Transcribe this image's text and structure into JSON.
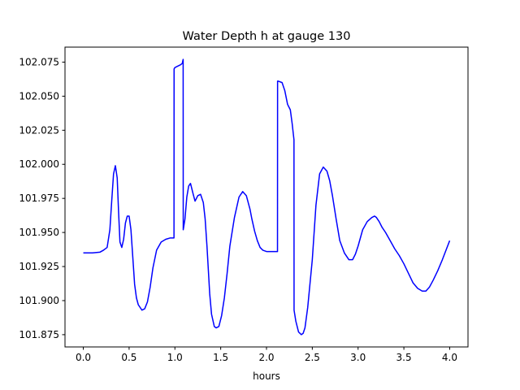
{
  "chart_data": {
    "type": "line",
    "title": "Water Depth h at gauge 130",
    "xlabel": "hours",
    "ylabel": "",
    "xlim": [
      -0.2,
      4.2
    ],
    "ylim": [
      101.866,
      102.086
    ],
    "xticks": [
      0.0,
      0.5,
      1.0,
      1.5,
      2.0,
      2.5,
      3.0,
      3.5,
      4.0
    ],
    "xtick_labels": [
      "0.0",
      "0.5",
      "1.0",
      "1.5",
      "2.0",
      "2.5",
      "3.0",
      "3.5",
      "4.0"
    ],
    "yticks": [
      101.875,
      101.9,
      101.925,
      101.95,
      101.975,
      102.0,
      102.025,
      102.05,
      102.075
    ],
    "ytick_labels": [
      "101.875",
      "101.900",
      "101.925",
      "101.950",
      "101.975",
      "102.000",
      "102.025",
      "102.050",
      "102.075"
    ],
    "grid": false,
    "color": "#0000ff",
    "series": [
      {
        "x": [
          0.0,
          0.1,
          0.18,
          0.22,
          0.26,
          0.29,
          0.31,
          0.33,
          0.35,
          0.37,
          0.385,
          0.4,
          0.42,
          0.44,
          0.46,
          0.48,
          0.5,
          0.52,
          0.54,
          0.56,
          0.58,
          0.6,
          0.62,
          0.64,
          0.67,
          0.7,
          0.73,
          0.76,
          0.8,
          0.85,
          0.9,
          0.95,
          0.99,
          0.991,
          1.0,
          1.03,
          1.06,
          1.08,
          1.09,
          1.091,
          1.11,
          1.13,
          1.15,
          1.17,
          1.2,
          1.22,
          1.25,
          1.28,
          1.31,
          1.33,
          1.35,
          1.38,
          1.4,
          1.43,
          1.45,
          1.48,
          1.51,
          1.54,
          1.57,
          1.6,
          1.65,
          1.7,
          1.74,
          1.78,
          1.82,
          1.84,
          1.87,
          1.9,
          1.93,
          1.96,
          2.0,
          2.04,
          2.08,
          2.11,
          2.12,
          2.121,
          2.13,
          2.17,
          2.2,
          2.23,
          2.26,
          2.28,
          2.3,
          2.301,
          2.32,
          2.35,
          2.38,
          2.4,
          2.42,
          2.45,
          2.5,
          2.54,
          2.58,
          2.62,
          2.66,
          2.69,
          2.72,
          2.76,
          2.8,
          2.85,
          2.9,
          2.94,
          2.97,
          3.0,
          3.05,
          3.1,
          3.15,
          3.18,
          3.2,
          3.23,
          3.26,
          3.3,
          3.35,
          3.4,
          3.45,
          3.5,
          3.55,
          3.6,
          3.65,
          3.7,
          3.74,
          3.78,
          3.82,
          3.87,
          3.92,
          3.96,
          4.0
        ],
        "y": [
          101.935,
          101.935,
          101.9355,
          101.937,
          101.939,
          101.952,
          101.973,
          101.993,
          101.999,
          101.99,
          101.965,
          101.943,
          101.939,
          101.945,
          101.957,
          101.962,
          101.962,
          101.952,
          101.932,
          101.912,
          101.902,
          101.897,
          101.895,
          101.893,
          101.894,
          101.899,
          101.91,
          101.924,
          101.937,
          101.943,
          101.945,
          101.946,
          101.946,
          102.07,
          102.071,
          102.072,
          102.073,
          102.074,
          102.077,
          101.952,
          101.96,
          101.976,
          101.984,
          101.986,
          101.978,
          101.973,
          101.977,
          101.978,
          101.972,
          101.96,
          101.94,
          101.905,
          101.89,
          101.881,
          101.88,
          101.881,
          101.889,
          101.902,
          101.92,
          101.94,
          101.961,
          101.976,
          101.98,
          101.977,
          101.967,
          101.96,
          101.951,
          101.944,
          101.939,
          101.937,
          101.936,
          101.936,
          101.936,
          101.936,
          101.936,
          102.061,
          102.061,
          102.06,
          102.054,
          102.044,
          102.04,
          102.03,
          102.018,
          101.893,
          101.885,
          101.877,
          101.875,
          101.876,
          101.88,
          101.895,
          101.93,
          101.97,
          101.993,
          101.998,
          101.995,
          101.988,
          101.977,
          101.96,
          101.944,
          101.935,
          101.93,
          101.93,
          101.934,
          101.94,
          101.952,
          101.958,
          101.961,
          101.962,
          101.961,
          101.958,
          101.954,
          101.95,
          101.944,
          101.938,
          101.933,
          101.927,
          101.92,
          101.913,
          101.909,
          101.907,
          101.907,
          101.91,
          101.915,
          101.922,
          101.93,
          101.937,
          101.944
        ]
      }
    ]
  }
}
